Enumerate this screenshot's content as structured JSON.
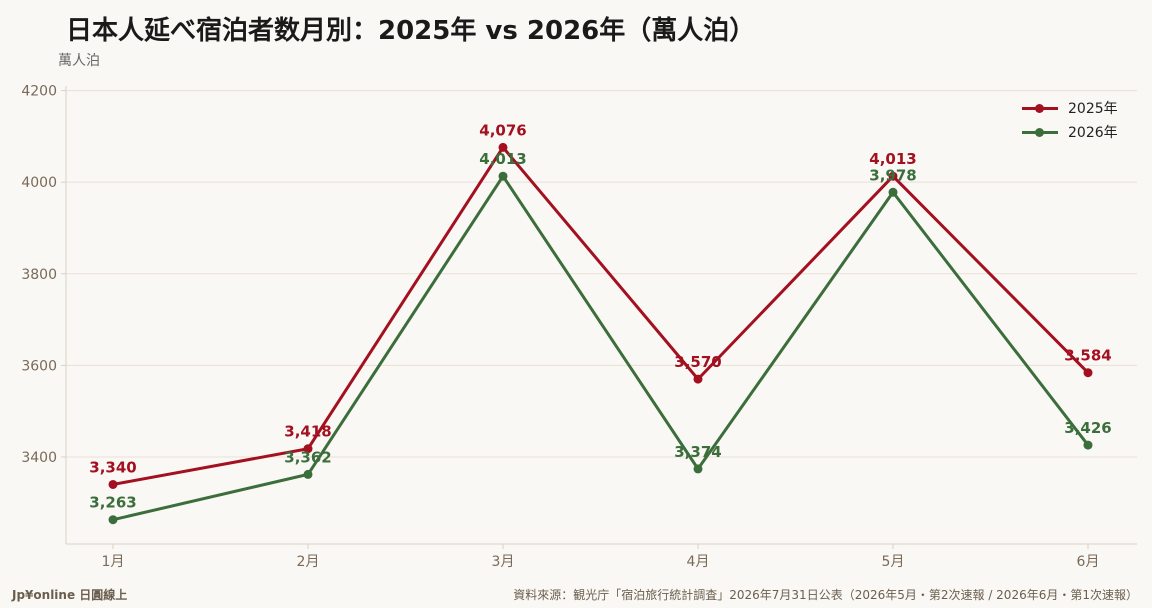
{
  "title": "日本人延べ宿泊者数月別：2025年 vs 2026年（萬人泊）",
  "y_unit": "萬人泊",
  "footer": {
    "brand": "Jp¥online 日圓線上",
    "source": "資料來源：観光庁「宿泊旅行統計調査」2026年7月31日公表（2026年5月・第2次速報 / 2026年6月・第1次速報）"
  },
  "colors": {
    "series_2025": "#a3101f",
    "series_2026": "#3b6e3b",
    "grid": "#eadfd8",
    "axis": "#d8d0c4",
    "tick_text": "#7a6a58"
  },
  "chart_data": {
    "type": "line",
    "categories": [
      "1月",
      "2月",
      "3月",
      "4月",
      "5月",
      "6月"
    ],
    "series": [
      {
        "name": "2025年",
        "values": [
          3340,
          3418,
          4076,
          3570,
          4013,
          3584
        ],
        "labels": [
          "3,340",
          "3,418",
          "4,076",
          "3,570",
          "4,013",
          "3,584"
        ]
      },
      {
        "name": "2026年",
        "values": [
          3263,
          3362,
          4013,
          3374,
          3978,
          3426
        ],
        "labels": [
          "3,263",
          "3,362",
          "4,013",
          "3,374",
          "3,978",
          "3,426"
        ]
      }
    ],
    "yticks": [
      3400,
      3600,
      3800,
      4000,
      4200
    ],
    "ylim": [
      3210,
      4210
    ],
    "ylabel": "萬人泊",
    "grid": "horizontal",
    "legend_position": "top-right"
  }
}
